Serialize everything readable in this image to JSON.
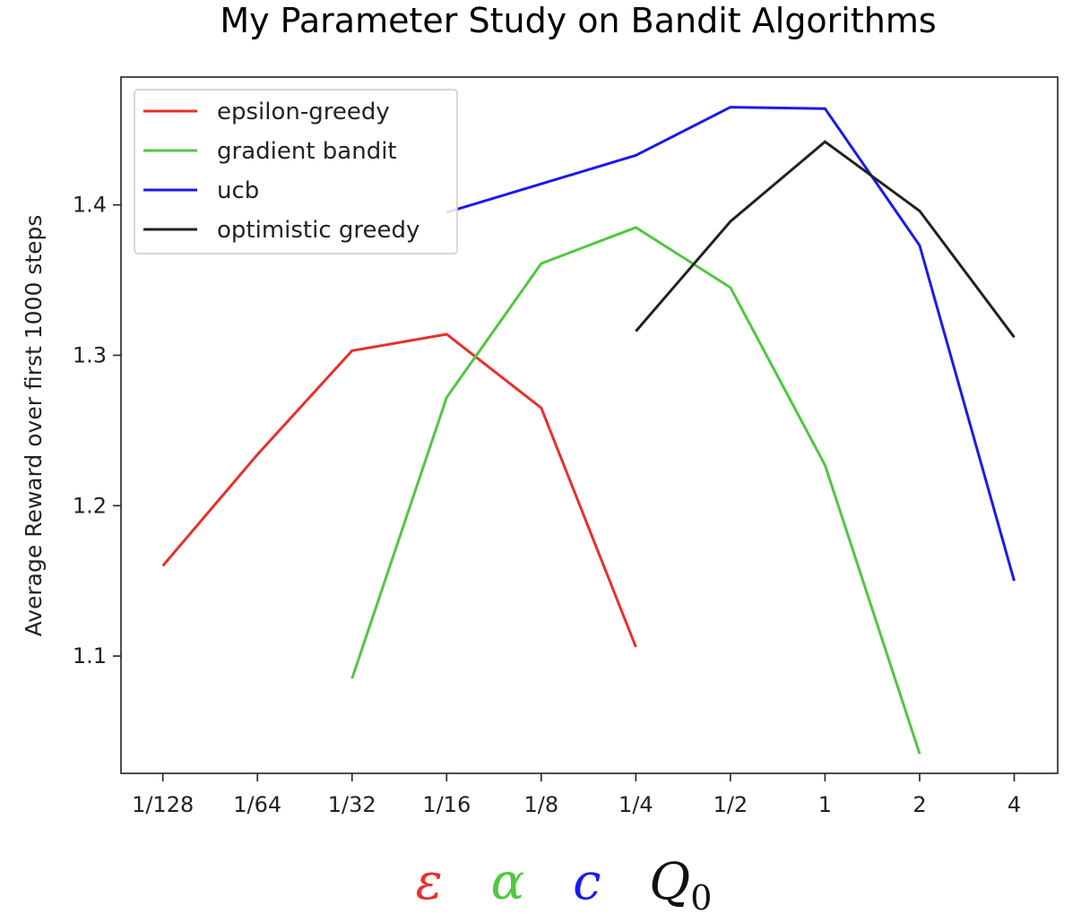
{
  "chart_data": {
    "type": "line",
    "title": "My Parameter Study on Bandit Algorithms",
    "xlabel": "",
    "ylabel": "Average Reward over first 1000 steps",
    "x_scale": "log2",
    "x_ticks": [
      {
        "value": 0.0078125,
        "label": "1/128"
      },
      {
        "value": 0.015625,
        "label": "1/64"
      },
      {
        "value": 0.03125,
        "label": "1/32"
      },
      {
        "value": 0.0625,
        "label": "1/16"
      },
      {
        "value": 0.125,
        "label": "1/8"
      },
      {
        "value": 0.25,
        "label": "1/4"
      },
      {
        "value": 0.5,
        "label": "1/2"
      },
      {
        "value": 1,
        "label": "1"
      },
      {
        "value": 2,
        "label": "2"
      },
      {
        "value": 4,
        "label": "4"
      }
    ],
    "y_ticks": [
      {
        "value": 1.1,
        "label": "1.1"
      },
      {
        "value": 1.2,
        "label": "1.2"
      },
      {
        "value": 1.3,
        "label": "1.3"
      },
      {
        "value": 1.4,
        "label": "1.4"
      }
    ],
    "xlim": [
      0.00575,
      5.5
    ],
    "ylim": [
      1.022,
      1.485
    ],
    "grid": false,
    "legend_position": "upper-left",
    "series": [
      {
        "name": "epsilon-greedy",
        "color": "#e8302b",
        "x": [
          0.0078125,
          0.015625,
          0.03125,
          0.0625,
          0.125,
          0.25
        ],
        "y": [
          1.16,
          1.234,
          1.303,
          1.314,
          1.265,
          1.106
        ]
      },
      {
        "name": "gradient bandit",
        "color": "#4fc83f",
        "x": [
          0.03125,
          0.0625,
          0.125,
          0.25,
          0.5,
          1,
          2
        ],
        "y": [
          1.085,
          1.272,
          1.361,
          1.385,
          1.345,
          1.227,
          1.035
        ]
      },
      {
        "name": "ucb",
        "color": "#1a1aee",
        "x": [
          0.0625,
          0.125,
          0.25,
          0.5,
          1,
          2,
          4
        ],
        "y": [
          1.395,
          1.414,
          1.433,
          1.465,
          1.464,
          1.373,
          1.15
        ]
      },
      {
        "name": "optimistic greedy",
        "color": "#222222",
        "x": [
          0.25,
          0.5,
          1,
          2,
          4
        ],
        "y": [
          1.316,
          1.389,
          1.442,
          1.396,
          1.312
        ]
      }
    ]
  },
  "param_symbols": [
    {
      "symbol": "ε",
      "color": "#e8302b"
    },
    {
      "symbol": "α",
      "color": "#4fc83f"
    },
    {
      "symbol": "c",
      "color": "#1a1aee"
    },
    {
      "symbol": "Q",
      "sub": "0",
      "color": "#111111"
    }
  ]
}
